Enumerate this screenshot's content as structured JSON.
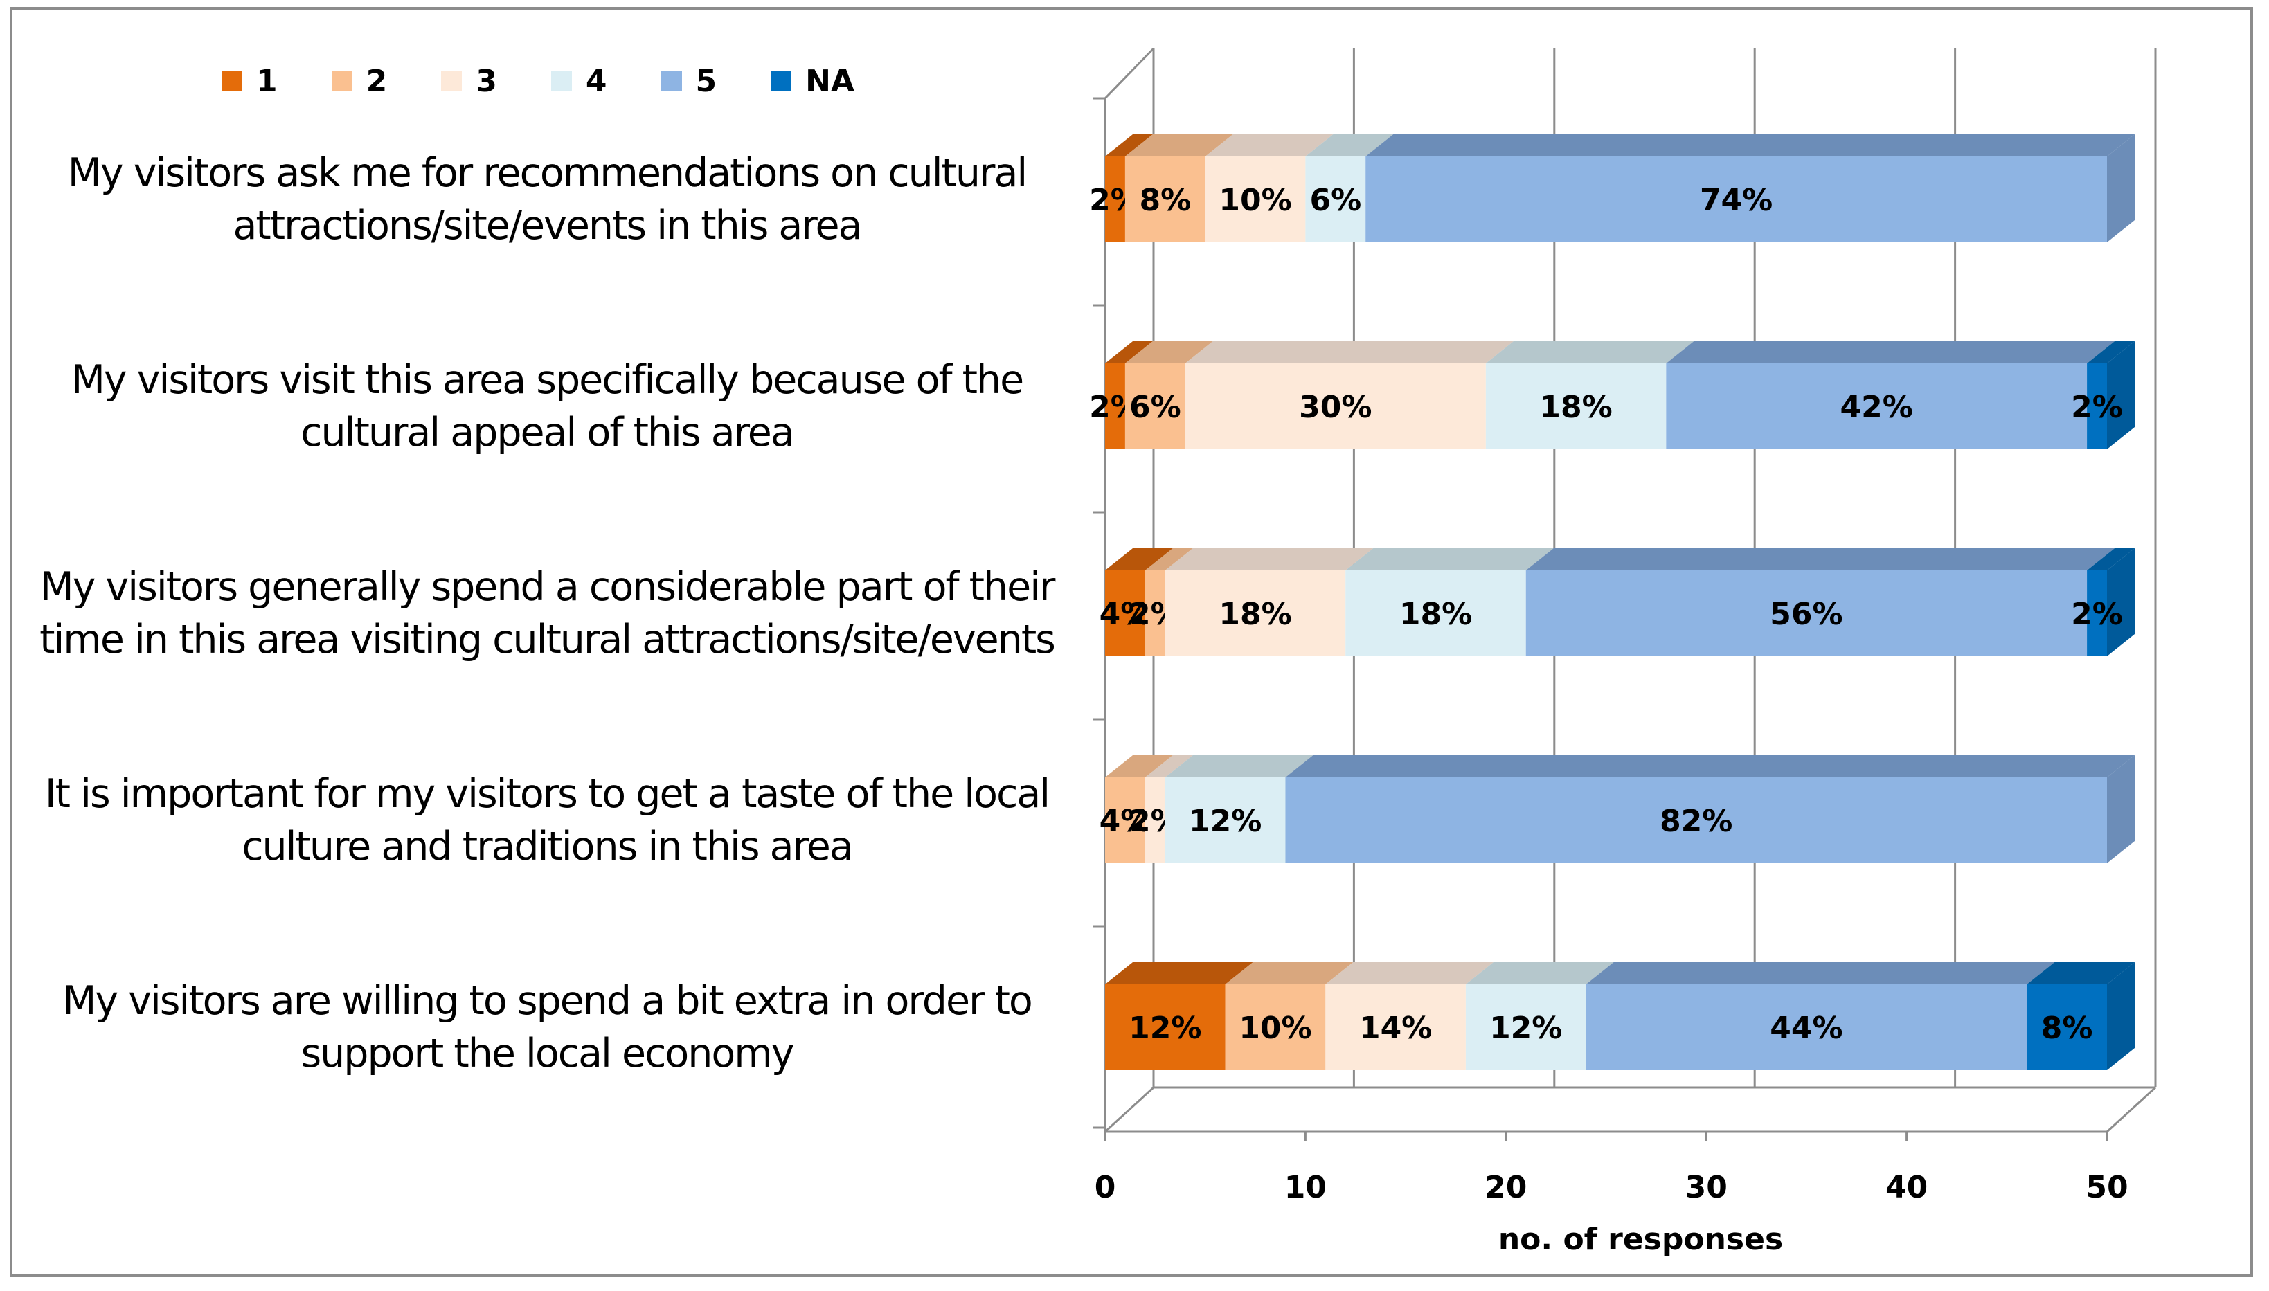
{
  "chart_data": {
    "type": "bar",
    "orientation": "horizontal",
    "stacked": true,
    "three_d": true,
    "categories": [
      "My visitors ask me for recommendations on cultural attractions/site/events in this area",
      "My visitors visit this area specifically because of the cultural appeal of this area",
      "My visitors generally spend a considerable part of their time in this area visiting cultural attractions/site/events",
      "It is important for my visitors to get a taste of the local culture and traditions in this area",
      "My visitors are willing to spend a bit extra in order to support the local economy"
    ],
    "category_lines": [
      [
        "My visitors ask me for recommendations on cultural",
        "attractions/site/events in this area"
      ],
      [
        "My visitors visit this area specifically because of the",
        "cultural appeal of this area"
      ],
      [
        "My visitors generally spend a considerable part of their",
        "time in this area visiting cultural attractions/site/events"
      ],
      [
        "It is important for my visitors to get a taste of the local",
        "culture and traditions in this area"
      ],
      [
        "My visitors are willing to spend a bit extra in order to",
        "support the local economy"
      ]
    ],
    "series": [
      {
        "name": "1",
        "color": "#E46C0A",
        "top_color": "#B8560A",
        "values": [
          1,
          1,
          2,
          0,
          6
        ],
        "labels": [
          "2%",
          "2%",
          "4%",
          "",
          "12%"
        ]
      },
      {
        "name": "2",
        "color": "#FAC090",
        "top_color": "#D9A77E",
        "values": [
          4,
          3,
          1,
          2,
          5
        ],
        "labels": [
          "8%",
          "6%",
          "2%",
          "4%",
          "10%"
        ]
      },
      {
        "name": "3",
        "color": "#FDE9D9",
        "top_color": "#D8C8BD",
        "values": [
          5,
          15,
          9,
          1,
          7
        ],
        "labels": [
          "10%",
          "30%",
          "18%",
          "2%",
          "14%"
        ]
      },
      {
        "name": "4",
        "color": "#DBEEF4",
        "top_color": "#B5C7CC",
        "values": [
          3,
          9,
          9,
          6,
          6
        ],
        "labels": [
          "6%",
          "18%",
          "18%",
          "12%",
          "12%"
        ]
      },
      {
        "name": "5",
        "color": "#8EB4E3",
        "top_color": "#6C8DB8",
        "values": [
          37,
          21,
          28,
          41,
          22
        ],
        "labels": [
          "74%",
          "42%",
          "56%",
          "82%",
          "44%"
        ]
      },
      {
        "name": "NA",
        "color": "#0070C0",
        "top_color": "#005A9A",
        "values": [
          0,
          1,
          1,
          0,
          4
        ],
        "labels": [
          "",
          "2%",
          "2%",
          "",
          "8%"
        ]
      }
    ],
    "title": "",
    "xlabel": "no. of responses",
    "ylabel": "",
    "xlim": [
      0,
      50
    ],
    "xticks": [
      0,
      10,
      20,
      30,
      40,
      50
    ],
    "grid": true,
    "legend_position": "top-left"
  }
}
